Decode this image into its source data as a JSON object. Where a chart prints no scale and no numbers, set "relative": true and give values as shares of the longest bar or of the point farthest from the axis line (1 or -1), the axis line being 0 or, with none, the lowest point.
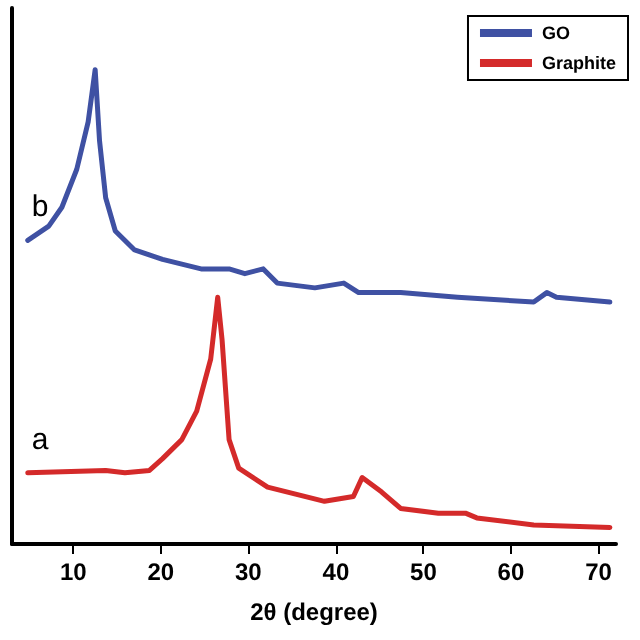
{
  "chart_data": {
    "type": "line",
    "relative": true,
    "xlabel": "2θ (degree)",
    "xlim": [
      3,
      72
    ],
    "xticks": [
      10,
      20,
      30,
      40,
      50,
      60,
      70
    ],
    "grid": false,
    "legend": "top right",
    "marker": "none",
    "line_style": "solid",
    "annotations": [
      "b",
      "a"
    ],
    "series": [
      {
        "name": "GO",
        "color": "#3f51a3",
        "x": [
          4.8,
          7.2,
          8.7,
          10.4,
          11.7,
          12.5,
          13.0,
          13.7,
          14.8,
          17.0,
          20.2,
          24.6,
          27.8,
          29.6,
          31.7,
          33.3,
          37.6,
          40.9,
          42.6,
          47.4,
          53.9,
          62.6,
          64.1,
          65.2,
          71.3
        ],
        "values": [
          0.64,
          0.67,
          0.71,
          0.79,
          0.89,
          1.0,
          0.85,
          0.73,
          0.66,
          0.62,
          0.6,
          0.58,
          0.58,
          0.57,
          0.58,
          0.55,
          0.54,
          0.55,
          0.53,
          0.53,
          0.52,
          0.51,
          0.53,
          0.52,
          0.51
        ]
      },
      {
        "name": "Graphite",
        "color": "#d42a2a",
        "x": [
          4.8,
          13.7,
          15.9,
          18.7,
          20.2,
          22.4,
          24.1,
          25.7,
          26.5,
          27.0,
          27.8,
          28.9,
          32.2,
          35.4,
          38.7,
          42.0,
          43.0,
          45.2,
          47.4,
          51.7,
          54.8,
          56.1,
          62.6,
          71.3
        ],
        "values": [
          0.15,
          0.155,
          0.15,
          0.155,
          0.18,
          0.22,
          0.28,
          0.39,
          0.52,
          0.43,
          0.22,
          0.16,
          0.12,
          0.105,
          0.09,
          0.1,
          0.14,
          0.11,
          0.075,
          0.065,
          0.065,
          0.055,
          0.04,
          0.035
        ]
      }
    ]
  }
}
